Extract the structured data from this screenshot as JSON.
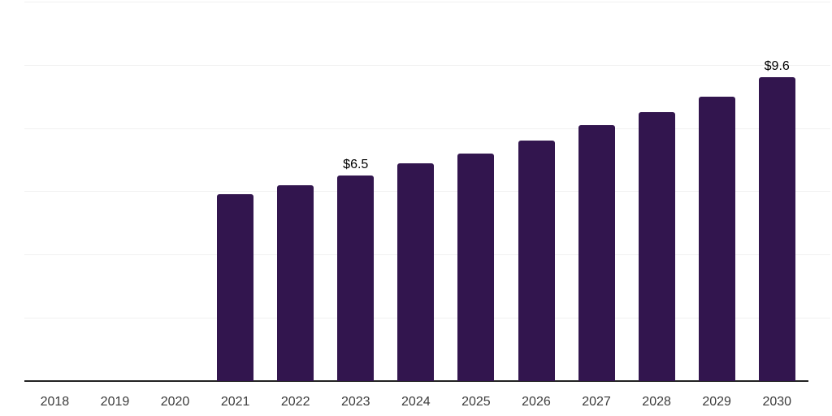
{
  "chart_data": {
    "type": "bar",
    "title": "",
    "xlabel": "",
    "ylabel": "",
    "categories": [
      "2018",
      "2019",
      "2020",
      "2021",
      "2022",
      "2023",
      "2024",
      "2025",
      "2026",
      "2027",
      "2028",
      "2029",
      "2030"
    ],
    "values": [
      null,
      null,
      null,
      5.9,
      6.2,
      6.5,
      6.9,
      7.2,
      7.6,
      8.1,
      8.5,
      9.0,
      9.6
    ],
    "data_labels": {
      "2023": "$6.5",
      "2030": "$9.6"
    },
    "ylim": [
      0,
      12
    ],
    "grid_step": 2,
    "grid": "horizontal",
    "y_tick_labels_visible": false,
    "legend": "none",
    "colors": {
      "bar": "#32154e",
      "axis": "#222222",
      "gridline": "#f1f1f1",
      "tick_label": "#3b3b3b",
      "data_label": "#000000",
      "background": "#ffffff"
    }
  }
}
